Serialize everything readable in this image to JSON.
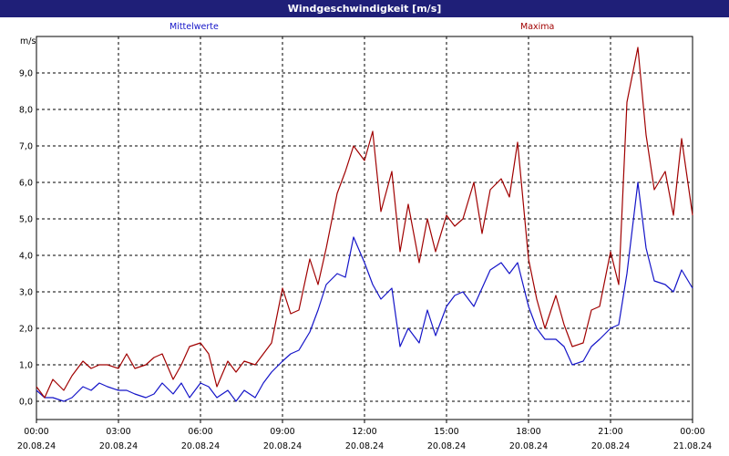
{
  "window": {
    "title": "Windgeschwindigkeit [m/s]"
  },
  "legend": {
    "mean_label": "Mittelwerte",
    "max_label": "Maxima"
  },
  "colors": {
    "mean": "#1414c8",
    "max": "#a00000",
    "title_bg": "#1f1f78"
  },
  "chart_data": {
    "type": "line",
    "title": "Windgeschwindigkeit [m/s]",
    "ylabel": "m/s",
    "ylim": [
      -0.5,
      10.0
    ],
    "xlim_hours": [
      0,
      24
    ],
    "yticks": [
      "0,0",
      "1,0",
      "2,0",
      "3,0",
      "4,0",
      "5,0",
      "6,0",
      "7,0",
      "8,0",
      "9,0"
    ],
    "ytick_values": [
      0,
      1,
      2,
      3,
      4,
      5,
      6,
      7,
      8,
      9
    ],
    "xticks": [
      {
        "time": "00:00",
        "date": "20.08.24"
      },
      {
        "time": "03:00",
        "date": "20.08.24"
      },
      {
        "time": "06:00",
        "date": "20.08.24"
      },
      {
        "time": "09:00",
        "date": "20.08.24"
      },
      {
        "time": "12:00",
        "date": "20.08.24"
      },
      {
        "time": "15:00",
        "date": "20.08.24"
      },
      {
        "time": "18:00",
        "date": "20.08.24"
      },
      {
        "time": "21:00",
        "date": "20.08.24"
      },
      {
        "time": "00:00",
        "date": "21.08.24"
      }
    ],
    "grid": true,
    "legend_position": "top",
    "series": [
      {
        "name": "Mittelwerte",
        "hours": [
          0,
          0.3,
          0.6,
          1,
          1.3,
          1.7,
          2,
          2.3,
          2.6,
          3,
          3.3,
          3.6,
          4,
          4.3,
          4.6,
          5,
          5.3,
          5.6,
          6,
          6.3,
          6.6,
          7,
          7.3,
          7.6,
          8,
          8.3,
          8.6,
          9,
          9.3,
          9.6,
          10,
          10.3,
          10.6,
          11,
          11.3,
          11.6,
          12,
          12.3,
          12.6,
          13,
          13.3,
          13.6,
          14,
          14.3,
          14.6,
          15,
          15.3,
          15.6,
          16,
          16.3,
          16.6,
          17,
          17.3,
          17.6,
          18,
          18.3,
          18.6,
          19,
          19.3,
          19.6,
          20,
          20.3,
          20.6,
          21,
          21.3,
          21.6,
          22,
          22.3,
          22.6,
          23,
          23.3,
          23.6,
          24
        ],
        "values": [
          0.3,
          0.1,
          0.1,
          0.0,
          0.1,
          0.4,
          0.3,
          0.5,
          0.4,
          0.3,
          0.3,
          0.2,
          0.1,
          0.2,
          0.5,
          0.2,
          0.5,
          0.1,
          0.5,
          0.4,
          0.1,
          0.3,
          0.0,
          0.3,
          0.1,
          0.5,
          0.8,
          1.1,
          1.3,
          1.4,
          1.9,
          2.5,
          3.2,
          3.5,
          3.4,
          4.5,
          3.8,
          3.2,
          2.8,
          3.1,
          1.5,
          2.0,
          1.6,
          2.5,
          1.8,
          2.6,
          2.9,
          3.0,
          2.6,
          3.1,
          3.6,
          3.8,
          3.5,
          3.8,
          2.6,
          2.0,
          1.7,
          1.7,
          1.5,
          1.0,
          1.1,
          1.5,
          1.7,
          2.0,
          2.1,
          3.5,
          6.0,
          4.2,
          3.3,
          3.2,
          3.0,
          3.6,
          3.1
        ]
      },
      {
        "name": "Maxima",
        "hours": [
          0,
          0.3,
          0.6,
          1,
          1.3,
          1.7,
          2,
          2.3,
          2.6,
          3,
          3.3,
          3.6,
          4,
          4.3,
          4.6,
          5,
          5.3,
          5.6,
          6,
          6.3,
          6.6,
          7,
          7.3,
          7.6,
          8,
          8.3,
          8.6,
          9,
          9.3,
          9.6,
          10,
          10.3,
          10.6,
          11,
          11.3,
          11.6,
          12,
          12.3,
          12.6,
          13,
          13.3,
          13.6,
          14,
          14.3,
          14.6,
          15,
          15.3,
          15.6,
          16,
          16.3,
          16.6,
          17,
          17.3,
          17.6,
          18,
          18.3,
          18.6,
          19,
          19.3,
          19.6,
          20,
          20.3,
          20.6,
          21,
          21.3,
          21.6,
          22,
          22.3,
          22.6,
          23,
          23.3,
          23.6,
          24
        ],
        "values": [
          0.4,
          0.1,
          0.6,
          0.3,
          0.7,
          1.1,
          0.9,
          1.0,
          1.0,
          0.9,
          1.3,
          0.9,
          1.0,
          1.2,
          1.3,
          0.6,
          1.0,
          1.5,
          1.6,
          1.3,
          0.4,
          1.1,
          0.8,
          1.1,
          1.0,
          1.3,
          1.6,
          3.1,
          2.4,
          2.5,
          3.9,
          3.2,
          4.2,
          5.7,
          6.3,
          7.0,
          6.6,
          7.4,
          5.2,
          6.3,
          4.1,
          5.4,
          3.8,
          5.0,
          4.1,
          5.1,
          4.8,
          5.0,
          6.0,
          4.6,
          5.8,
          6.1,
          5.6,
          7.1,
          3.9,
          2.8,
          2.0,
          2.9,
          2.1,
          1.5,
          1.6,
          2.5,
          2.6,
          4.1,
          3.2,
          8.2,
          9.7,
          7.3,
          5.8,
          6.3,
          5.1,
          7.2,
          5.1
        ]
      }
    ]
  }
}
